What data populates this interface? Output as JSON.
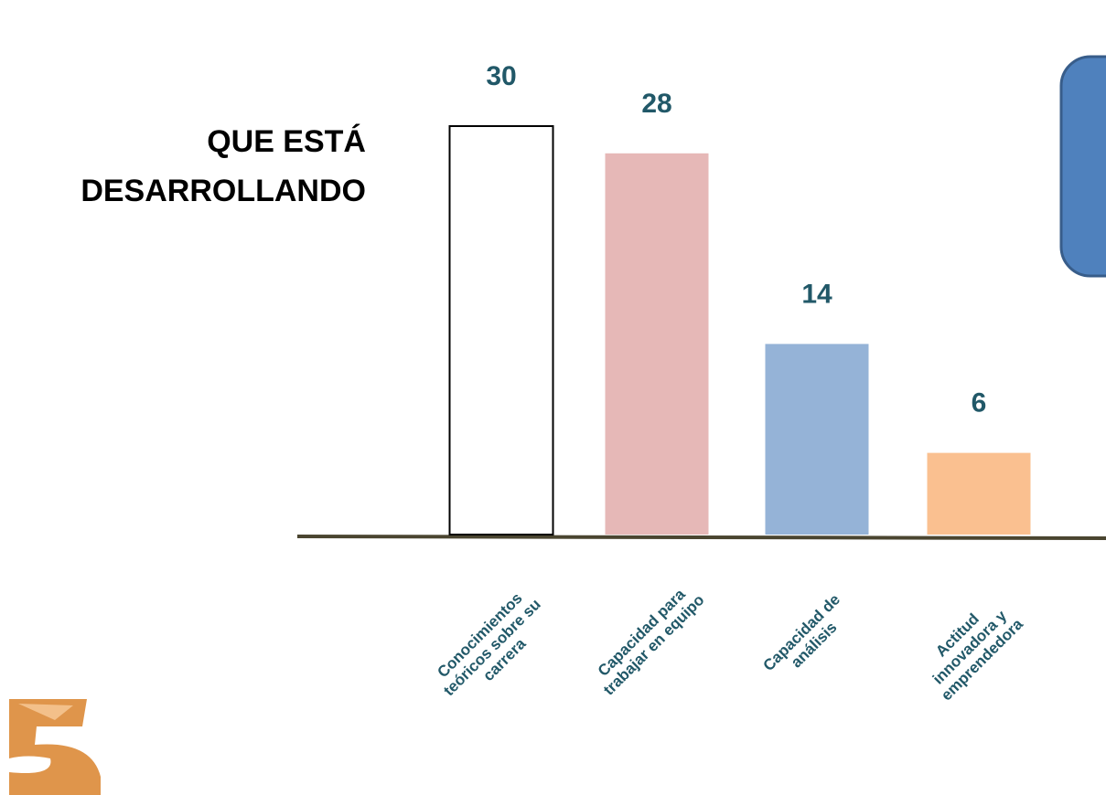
{
  "chart_data": {
    "type": "bar",
    "title": "QUE ESTÁ DESARROLLANDO",
    "categories": [
      "Conocimientos teóricos sobre su carrera",
      "Capacidad para trabajar en equipo",
      "Capacidad de análisis",
      "Actitud innovadora y emprendedora"
    ],
    "values": [
      30,
      28,
      14,
      6
    ],
    "colors": [
      "#ffffff",
      "#e6b8b7",
      "#95b3d7",
      "#fac090"
    ]
  }
}
